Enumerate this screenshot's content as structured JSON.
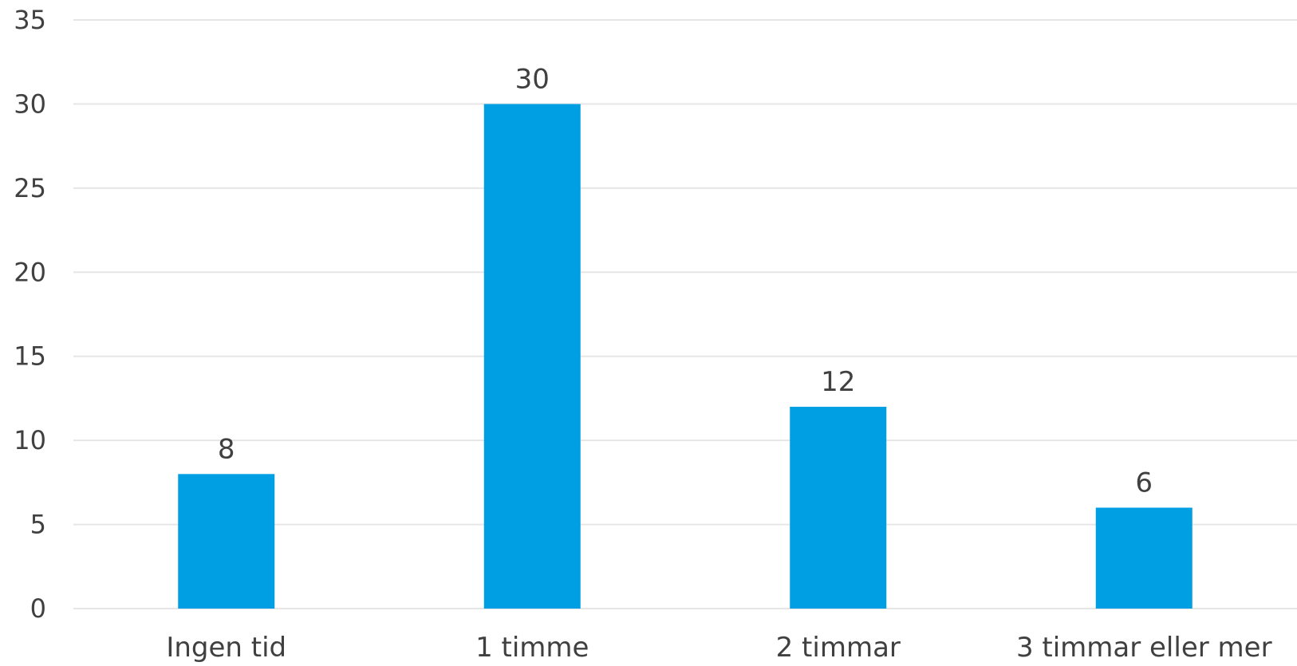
{
  "chart_data": {
    "type": "bar",
    "title": "",
    "xlabel": "",
    "ylabel": "",
    "categories": [
      "Ingen tid",
      "1 timme",
      "2 timmar",
      "3 timmar eller mer"
    ],
    "values": [
      8,
      30,
      12,
      6
    ],
    "data_labels": [
      "8",
      "30",
      "12",
      "6"
    ],
    "ylim": [
      0,
      35
    ],
    "yticks": [
      0,
      5,
      10,
      15,
      20,
      25,
      30,
      35
    ],
    "grid": true,
    "legend": "none",
    "bar_color": "#009fe3",
    "grid_color": "#e6e6e6",
    "text_color": "#404040"
  }
}
